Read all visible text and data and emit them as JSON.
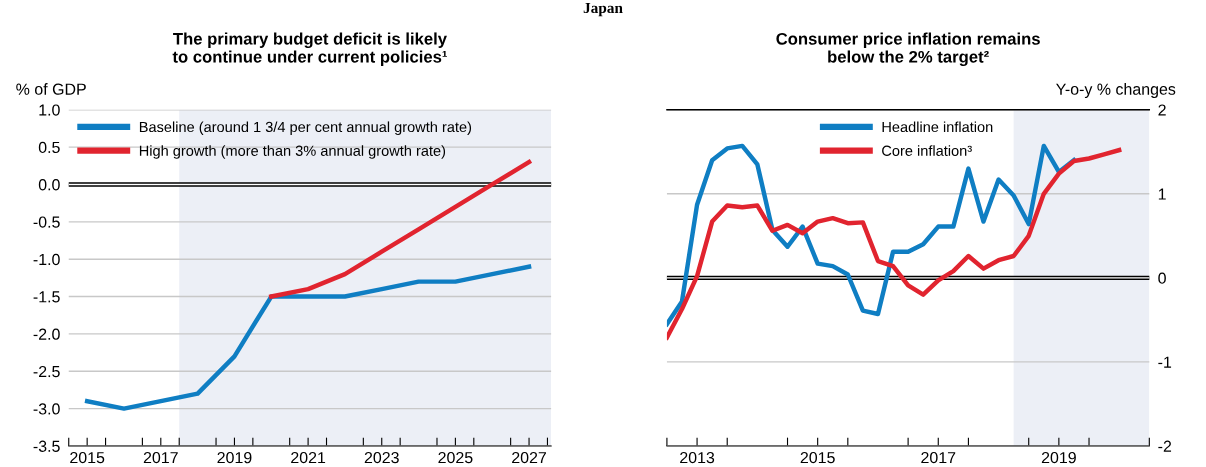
{
  "chart_data": [
    {
      "type": "line",
      "title": "The primary budget deficit is likely\nto continue under current policies¹",
      "ylabel": "% of GDP",
      "annotations": [
        "Japan"
      ],
      "x": [
        2015,
        2016,
        2017,
        2018,
        2019,
        2020,
        2021,
        2022,
        2023,
        2024,
        2025,
        2026,
        2027
      ],
      "series": [
        {
          "name": "Baseline (around 1 3/4 per cent annual growth rate)",
          "color": "#0f7ec3",
          "values": [
            -2.9,
            -3.0,
            -2.9,
            -2.8,
            -2.3,
            -1.5,
            -1.5,
            -1.5,
            -1.4,
            -1.3,
            -1.3,
            -1.2,
            -1.1
          ]
        },
        {
          "name": "High growth (more than 3% annual growth rate)",
          "color": "#e1242f",
          "values": [
            null,
            null,
            null,
            null,
            null,
            -1.5,
            -1.4,
            -1.2,
            -0.9,
            -0.6,
            -0.3,
            0.0,
            0.3
          ]
        }
      ],
      "xlim": [
        2014.5,
        2027.6
      ],
      "xticks": [
        {
          "value": 2014.5,
          "label": null
        },
        2015,
        {
          "value": 2015.5,
          "label": null
        },
        {
          "value": 2016.5,
          "label": null
        },
        2017,
        {
          "value": 2017.5,
          "label": null
        },
        {
          "value": 2018.5,
          "label": null
        },
        2019,
        {
          "value": 2019.5,
          "label": null
        },
        {
          "value": 2020.5,
          "label": null
        },
        2021,
        {
          "value": 2021.5,
          "label": null
        },
        {
          "value": 2022.5,
          "label": null
        },
        2023,
        {
          "value": 2023.5,
          "label": null
        },
        {
          "value": 2024.5,
          "label": null
        },
        2025,
        {
          "value": 2025.5,
          "label": null
        },
        {
          "value": 2026.5,
          "label": null
        },
        2027,
        {
          "value": 2027.5,
          "label": null
        }
      ],
      "ylim": [
        -3.5,
        1.0
      ],
      "yticks": [
        {
          "value": -3.5,
          "label": "-3.5"
        },
        {
          "value": -3.0,
          "label": "-3.0"
        },
        {
          "value": -2.5,
          "label": "-2.5"
        },
        {
          "value": -2.0,
          "label": "-2.0"
        },
        {
          "value": -1.5,
          "label": "-1.5"
        },
        {
          "value": -1.0,
          "label": "-1.0"
        },
        {
          "value": -0.5,
          "label": "-0.5"
        },
        {
          "value": 0.0,
          "label": "0.0"
        },
        {
          "value": 0.5,
          "label": "0.5"
        },
        {
          "value": 1.0,
          "label": "1.0"
        }
      ],
      "bands": [
        {
          "axis": "x",
          "from": 2017.5,
          "to": 2027.6,
          "color": "#eceff6"
        }
      ],
      "ref_lines": [
        {
          "axis": "y",
          "value": 0,
          "color": "#000000"
        }
      ],
      "grid": "y",
      "legend": "top left"
    },
    {
      "type": "line",
      "title": "Consumer price inflation remains\nbelow the 2% target²",
      "ylabel": "Y-o-y % changes",
      "x": [
        2013.0,
        2013.25,
        2013.5,
        2013.75,
        2014.0,
        2014.25,
        2014.5,
        2014.75,
        2015.0,
        2015.25,
        2015.5,
        2015.75,
        2016.0,
        2016.25,
        2016.5,
        2016.75,
        2017.0,
        2017.25,
        2017.5,
        2017.75,
        2018.0,
        2018.25,
        2018.5,
        2018.75,
        2019.0,
        2019.25,
        2019.5,
        2019.75,
        2020.0,
        2020.25,
        2020.5
      ],
      "series": [
        {
          "name": "Headline inflation",
          "color": "#0f7ec3",
          "values": [
            -0.55,
            -0.28,
            0.87,
            1.4,
            1.54,
            1.57,
            1.35,
            0.57,
            0.37,
            0.61,
            0.17,
            0.14,
            0.04,
            -0.39,
            -0.43,
            0.31,
            0.31,
            0.4,
            0.61,
            0.61,
            1.3,
            0.67,
            1.17,
            0.98,
            0.64,
            1.57,
            1.26,
            1.4,
            null,
            null,
            null
          ]
        },
        {
          "name": "Core inflation³",
          "color": "#e1242f",
          "values": [
            -0.71,
            -0.37,
            0.02,
            0.67,
            0.86,
            0.84,
            0.86,
            0.56,
            0.63,
            0.53,
            0.67,
            0.71,
            0.65,
            0.66,
            0.2,
            0.14,
            -0.09,
            -0.2,
            -0.03,
            0.08,
            0.26,
            0.11,
            0.21,
            0.26,
            0.5,
            1.0,
            1.24,
            1.39,
            1.42,
            1.47,
            1.52
          ]
        }
      ],
      "xlim": [
        2013.0,
        2021.0
      ],
      "xticks": [
        {
          "value": 2013.0,
          "label": null
        },
        {
          "value": 2013.5,
          "label": "2013"
        },
        {
          "value": 2014.0,
          "label": null
        },
        {
          "value": 2015.0,
          "label": null
        },
        {
          "value": 2015.5,
          "label": "2015"
        },
        {
          "value": 2016.0,
          "label": null
        },
        {
          "value": 2017.0,
          "label": null
        },
        {
          "value": 2017.5,
          "label": "2017"
        },
        {
          "value": 2018.0,
          "label": null
        },
        {
          "value": 2019.0,
          "label": null
        },
        {
          "value": 2019.5,
          "label": "2019"
        },
        {
          "value": 2020.0,
          "label": null
        },
        {
          "value": 2021.0,
          "label": null
        }
      ],
      "ylim": [
        -2,
        2
      ],
      "yticks": [
        -2,
        -1,
        0,
        1,
        2
      ],
      "bands": [
        {
          "axis": "x",
          "from": 2018.75,
          "to": 2021.0,
          "color": "#eceff6"
        }
      ],
      "ref_lines": [
        {
          "axis": "y",
          "value": 0,
          "color": "#000000"
        }
      ],
      "grid": "y",
      "legend": "top"
    }
  ]
}
